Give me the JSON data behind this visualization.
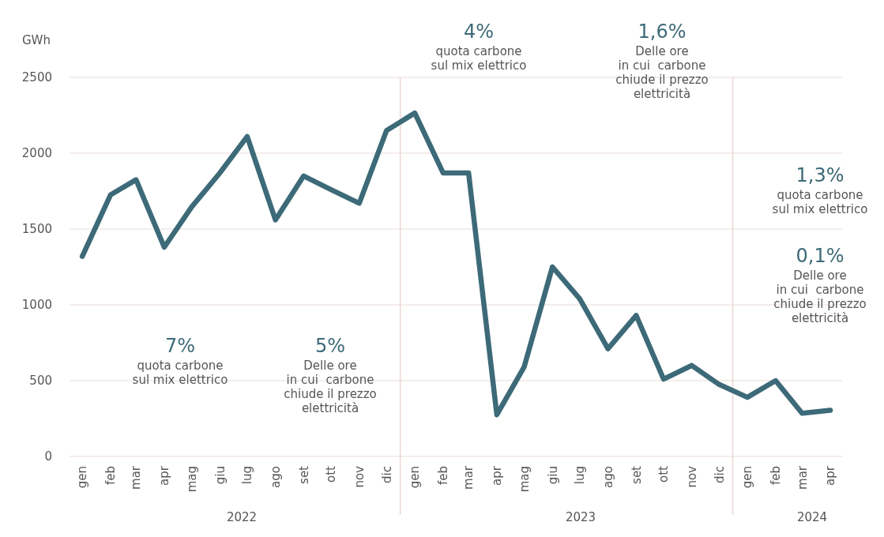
{
  "chart_data": {
    "type": "line",
    "ylabel": "GWh",
    "x": [
      "2022-01",
      "2022-02",
      "2022-03",
      "2022-04",
      "2022-05",
      "2022-06",
      "2022-07",
      "2022-08",
      "2022-09",
      "2022-10",
      "2022-11",
      "2022-12",
      "2023-01",
      "2023-02",
      "2023-03",
      "2023-04",
      "2023-05",
      "2023-06",
      "2023-07",
      "2023-08",
      "2023-09",
      "2023-10",
      "2023-11",
      "2023-12",
      "2024-01",
      "2024-02",
      "2024-03",
      "2024-04"
    ],
    "series": [
      {
        "color": "#3d6a78",
        "values": [
          1320,
          1725,
          1825,
          1380,
          1645,
          1870,
          2110,
          1560,
          1850,
          1760,
          1670,
          2150,
          2265,
          1870,
          1870,
          275,
          590,
          1250,
          1040,
          710,
          930,
          510,
          600,
          475,
          390,
          500,
          285,
          305
        ]
      }
    ],
    "xlim": [
      "2021-12-18",
      "2024-04-14"
    ],
    "xticks": [
      {
        "value": "2022-01",
        "label": "gen"
      },
      {
        "value": "2022-02",
        "label": "feb"
      },
      {
        "value": "2022-03",
        "label": "mar"
      },
      {
        "value": "2022-04",
        "label": "apr"
      },
      {
        "value": "2022-05",
        "label": "mag"
      },
      {
        "value": "2022-06",
        "label": "giu"
      },
      {
        "value": "2022-07",
        "label": "lug"
      },
      {
        "value": "2022-08",
        "label": "ago"
      },
      {
        "value": "2022-09",
        "label": "set"
      },
      {
        "value": "2022-10",
        "label": "ott"
      },
      {
        "value": "2022-11",
        "label": "nov"
      },
      {
        "value": "2022-12",
        "label": "dic"
      },
      {
        "value": "2023-01",
        "label": "gen"
      },
      {
        "value": "2023-02",
        "label": "feb"
      },
      {
        "value": "2023-03",
        "label": "mar"
      },
      {
        "value": "2023-04",
        "label": "apr"
      },
      {
        "value": "2023-05",
        "label": "mag"
      },
      {
        "value": "2023-06",
        "label": "giu"
      },
      {
        "value": "2023-07",
        "label": "lug"
      },
      {
        "value": "2023-08",
        "label": "ago"
      },
      {
        "value": "2023-09",
        "label": "set"
      },
      {
        "value": "2023-10",
        "label": "ott"
      },
      {
        "value": "2023-11",
        "label": "nov"
      },
      {
        "value": "2023-12",
        "label": "dic"
      },
      {
        "value": "2024-01",
        "label": "gen"
      },
      {
        "value": "2024-02",
        "label": "feb"
      },
      {
        "value": "2024-03",
        "label": "mar"
      },
      {
        "value": "2024-04",
        "label": "apr"
      }
    ],
    "ylim": [
      0,
      2500
    ],
    "yticks": [
      0,
      500,
      1000,
      1500,
      2000,
      2500
    ],
    "grid": "y",
    "marker": "none",
    "line_style": "solid",
    "ref_lines": [
      {
        "axis": "x",
        "value": "2022-12-16",
        "color": "#ead8d4"
      },
      {
        "axis": "x",
        "value": "2023-12-16",
        "color": "#ead8d4"
      }
    ],
    "annotations": [
      "2022",
      "2023",
      "2024",
      "7%\nquota carbone\nsul mix elettrico",
      "5%\nDelle ore\nin cui  carbone\nchiude il prezzo\nelettricità",
      "4%\nquota carbone\nsul mix elettrico",
      "1,6%\nDelle ore\nin cui  carbone\nchiude il prezzo\nelettricità",
      "1,3%\nquota carbone\nsul mix elettrico",
      "0,1%\nDelle ore\nin cui  carbone\nchiude il prezzo\nelettricità"
    ]
  }
}
